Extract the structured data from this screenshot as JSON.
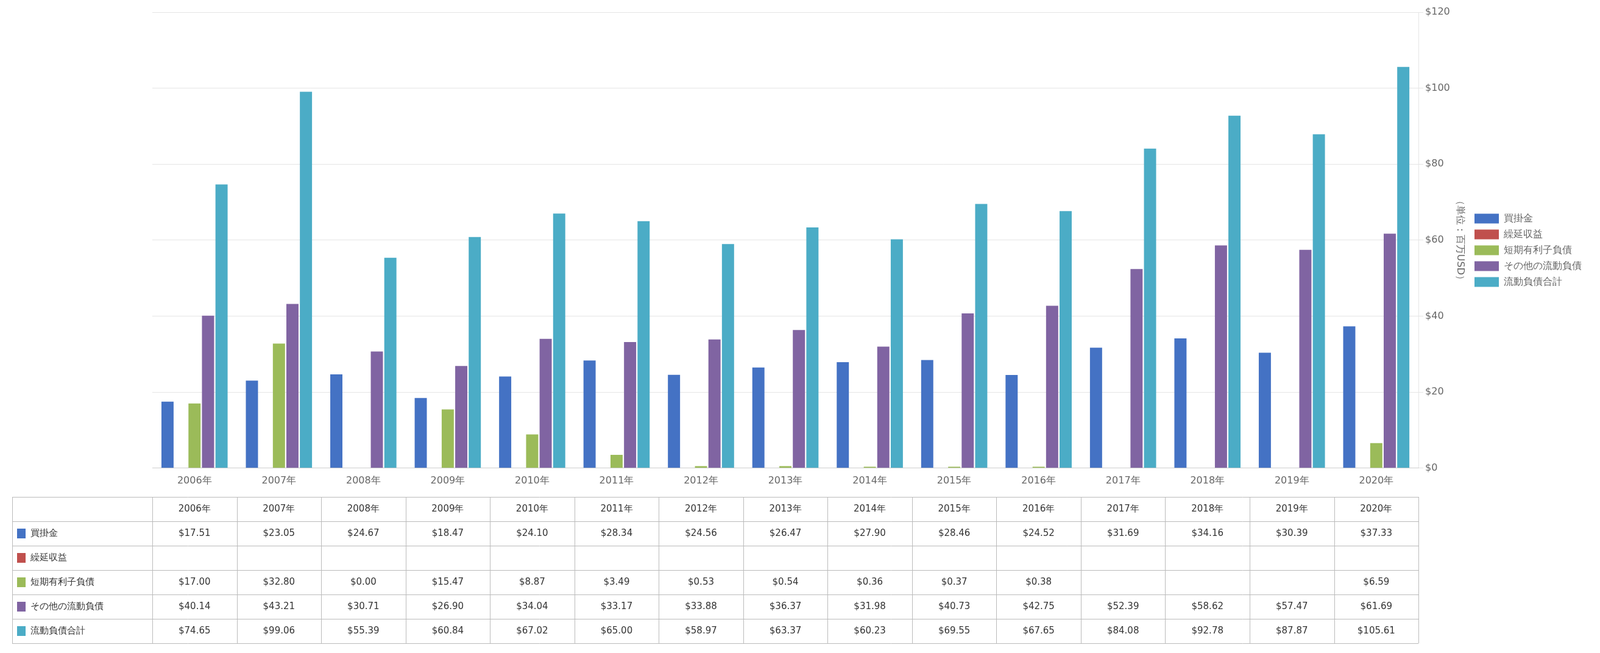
{
  "chart_data": {
    "type": "bar",
    "categories": [
      "2006年",
      "2007年",
      "2008年",
      "2009年",
      "2010年",
      "2011年",
      "2012年",
      "2013年",
      "2014年",
      "2015年",
      "2016年",
      "2017年",
      "2018年",
      "2019年",
      "2020年"
    ],
    "series": [
      {
        "name": "買掛金",
        "color": "#4472C4",
        "values": [
          17.51,
          23.05,
          24.67,
          18.47,
          24.1,
          28.34,
          24.56,
          26.47,
          27.9,
          28.46,
          24.52,
          31.69,
          34.16,
          30.39,
          37.33
        ],
        "value_labels": [
          "$17.51",
          "$23.05",
          "$24.67",
          "$18.47",
          "$24.10",
          "$28.34",
          "$24.56",
          "$26.47",
          "$27.90",
          "$28.46",
          "$24.52",
          "$31.69",
          "$34.16",
          "$30.39",
          "$37.33"
        ]
      },
      {
        "name": "繰延収益",
        "color": "#C0504D",
        "values": [
          0,
          0,
          0,
          0,
          0,
          0,
          0,
          0,
          0,
          0,
          0,
          0,
          0,
          0,
          0
        ],
        "value_labels": [
          null,
          null,
          null,
          null,
          null,
          null,
          null,
          null,
          null,
          null,
          null,
          null,
          null,
          null,
          null
        ]
      },
      {
        "name": "短期有利子負債",
        "color": "#9BBB59",
        "values": [
          17.0,
          32.8,
          0.0,
          15.47,
          8.87,
          3.49,
          0.53,
          0.54,
          0.36,
          0.37,
          0.38,
          0,
          0,
          0,
          6.59
        ],
        "value_labels": [
          "$17.00",
          "$32.80",
          "$0.00",
          "$15.47",
          "$8.87",
          "$3.49",
          "$0.53",
          "$0.54",
          "$0.36",
          "$0.37",
          "$0.38",
          null,
          null,
          null,
          "$6.59"
        ]
      },
      {
        "name": "その他の流動負債",
        "color": "#8064A2",
        "values": [
          40.14,
          43.21,
          30.71,
          26.9,
          34.04,
          33.17,
          33.88,
          36.37,
          31.98,
          40.73,
          42.75,
          52.39,
          58.62,
          57.47,
          61.69
        ],
        "value_labels": [
          "$40.14",
          "$43.21",
          "$30.71",
          "$26.90",
          "$34.04",
          "$33.17",
          "$33.88",
          "$36.37",
          "$31.98",
          "$40.73",
          "$42.75",
          "$52.39",
          "$58.62",
          "$57.47",
          "$61.69"
        ]
      },
      {
        "name": "流動負債合計",
        "color": "#4BACC6",
        "values": [
          74.65,
          99.06,
          55.39,
          60.84,
          67.02,
          65.0,
          58.97,
          63.37,
          60.23,
          69.55,
          67.65,
          84.08,
          92.78,
          87.87,
          105.61
        ],
        "value_labels": [
          "$74.65",
          "$99.06",
          "$55.39",
          "$60.84",
          "$67.02",
          "$65.00",
          "$58.97",
          "$63.37",
          "$60.23",
          "$69.55",
          "$67.65",
          "$84.08",
          "$92.78",
          "$87.87",
          "$105.61"
        ]
      }
    ],
    "ylabel": "（単位：百万USD）",
    "ylim": [
      0,
      120
    ],
    "yticks": [
      {
        "value": 0,
        "label": "$0"
      },
      {
        "value": 20,
        "label": "$20"
      },
      {
        "value": 40,
        "label": "$40"
      },
      {
        "value": 60,
        "label": "$60"
      },
      {
        "value": 80,
        "label": "$80"
      },
      {
        "value": 100,
        "label": "$100"
      },
      {
        "value": 120,
        "label": "$120"
      }
    ],
    "grid": true,
    "legend": "right"
  }
}
